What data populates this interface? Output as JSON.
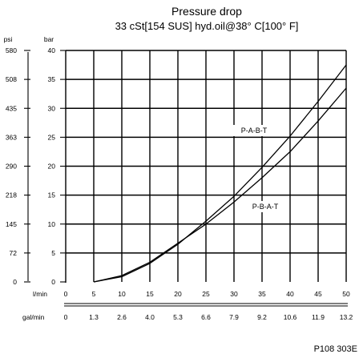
{
  "chart_data": {
    "type": "line",
    "title": "Pressure drop",
    "subtitle": "33 cSt[154 SUS] hyd.oil@38°  C[100° F]",
    "ylabel_left": "psi",
    "ylabel_right": "bar",
    "xlabel_top": "l/min",
    "xlabel_bottom": "gal/min",
    "ylim": [
      0,
      40
    ],
    "xlim": [
      0,
      50
    ],
    "x_ticks": [
      0,
      5,
      10,
      15,
      20,
      25,
      30,
      35,
      40,
      45,
      50
    ],
    "x_tick_labels_lmin": [
      "0",
      "5",
      "10",
      "15",
      "20",
      "25",
      "30",
      "35",
      "40",
      "45",
      "50"
    ],
    "x_tick_labels_galmin": [
      "0",
      "1.3",
      "2.6",
      "4.0",
      "5.3",
      "6.6",
      "7.9",
      "9.2",
      "10.6",
      "11.9",
      "13.2"
    ],
    "y_ticks": [
      0,
      5,
      10,
      15,
      20,
      25,
      30,
      35,
      40
    ],
    "y_tick_labels_bar": [
      "0",
      "5",
      "10",
      "15",
      "20",
      "25",
      "30",
      "35",
      "40"
    ],
    "y_tick_labels_psi": [
      "0",
      "72",
      "145",
      "218",
      "290",
      "363",
      "435",
      "508",
      "580"
    ],
    "grid": true,
    "series": [
      {
        "name": "P-A-B-T",
        "x": [
          5,
          10,
          15,
          20,
          25,
          30,
          35,
          40,
          45,
          50
        ],
        "y": [
          0,
          0.9,
          3.2,
          6.5,
          10.5,
          14.8,
          19.8,
          25.2,
          31.2,
          37.5
        ]
      },
      {
        "name": "P-B-A-T",
        "x": [
          5,
          10,
          15,
          20,
          25,
          30,
          35,
          40,
          45,
          50
        ],
        "y": [
          0,
          1.1,
          3.4,
          6.7,
          10.0,
          13.8,
          18.0,
          22.5,
          27.8,
          33.5
        ]
      }
    ],
    "annotations": [
      "P-A-B-T",
      "P-B-A-T"
    ],
    "figure_code": "P108 303E"
  }
}
